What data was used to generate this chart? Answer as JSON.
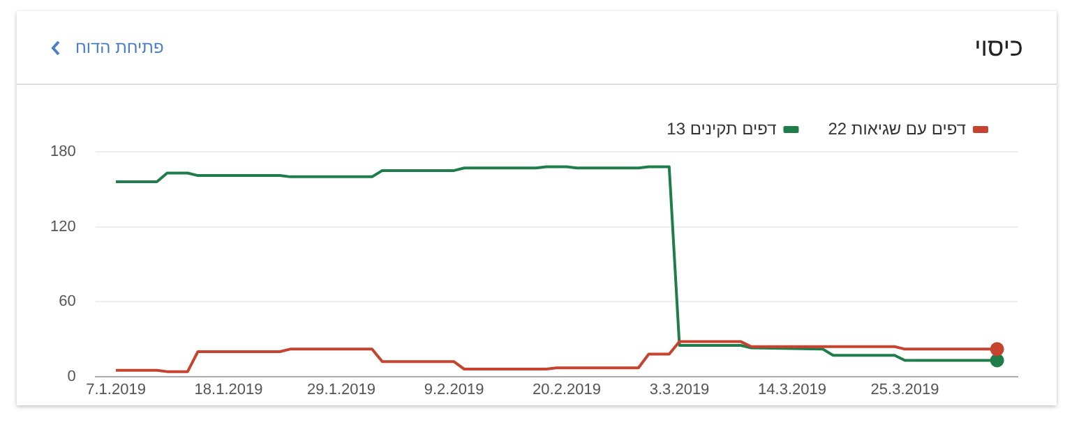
{
  "chart_data": {
    "type": "line",
    "title": "כיסוי",
    "annotations": [
      "פתיחת הדוח"
    ],
    "series": [
      {
        "name": "22 דפים עם שגיאות",
        "color": "#c5432f",
        "x": [
          "2019-01-07",
          "2019-01-11",
          "2019-01-12",
          "2019-01-14",
          "2019-01-15",
          "2019-01-23",
          "2019-01-24",
          "2019-02-01",
          "2019-02-02",
          "2019-02-09",
          "2019-02-10",
          "2019-02-18",
          "2019-02-19",
          "2019-02-27",
          "2019-02-28",
          "2019-03-02",
          "2019-03-03",
          "2019-03-09",
          "2019-03-10",
          "2019-03-24",
          "2019-03-25",
          "2019-04-03"
        ],
        "values": [
          5,
          5,
          4,
          4,
          20,
          20,
          22,
          22,
          12,
          12,
          6,
          6,
          7,
          7,
          18,
          18,
          28,
          28,
          24,
          24,
          22,
          22
        ]
      },
      {
        "name": "13 דפים תקינים",
        "color": "#1e7d4a",
        "x": [
          "2019-01-07",
          "2019-01-11",
          "2019-01-12",
          "2019-01-14",
          "2019-01-15",
          "2019-01-23",
          "2019-01-24",
          "2019-02-01",
          "2019-02-02",
          "2019-02-09",
          "2019-02-10",
          "2019-02-17",
          "2019-02-18",
          "2019-02-20",
          "2019-02-21",
          "2019-02-27",
          "2019-02-28",
          "2019-03-02",
          "2019-03-03",
          "2019-03-09",
          "2019-03-10",
          "2019-03-17",
          "2019-03-18",
          "2019-03-24",
          "2019-03-25",
          "2019-04-03"
        ],
        "values": [
          156,
          156,
          163,
          163,
          161,
          161,
          160,
          160,
          165,
          165,
          167,
          167,
          168,
          168,
          167,
          167,
          168,
          168,
          25,
          25,
          23,
          22,
          17,
          17,
          13,
          13
        ]
      }
    ],
    "xlim": [
      "2019-01-05",
      "2019-04-05"
    ],
    "xticks": [
      {
        "value": "2019-01-07",
        "label": "7.1.2019"
      },
      {
        "value": "2019-01-18",
        "label": "18.1.2019"
      },
      {
        "value": "2019-01-29",
        "label": "29.1.2019"
      },
      {
        "value": "2019-02-09",
        "label": "9.2.2019"
      },
      {
        "value": "2019-02-20",
        "label": "20.2.2019"
      },
      {
        "value": "2019-03-03",
        "label": "3.3.2019"
      },
      {
        "value": "2019-03-14",
        "label": "14.3.2019"
      },
      {
        "value": "2019-03-25",
        "label": "25.3.2019"
      }
    ],
    "ylim": [
      0,
      180
    ],
    "yticks": [
      0,
      60,
      120,
      180
    ],
    "grid": "y",
    "legend": "top right",
    "line_style": "solid"
  }
}
